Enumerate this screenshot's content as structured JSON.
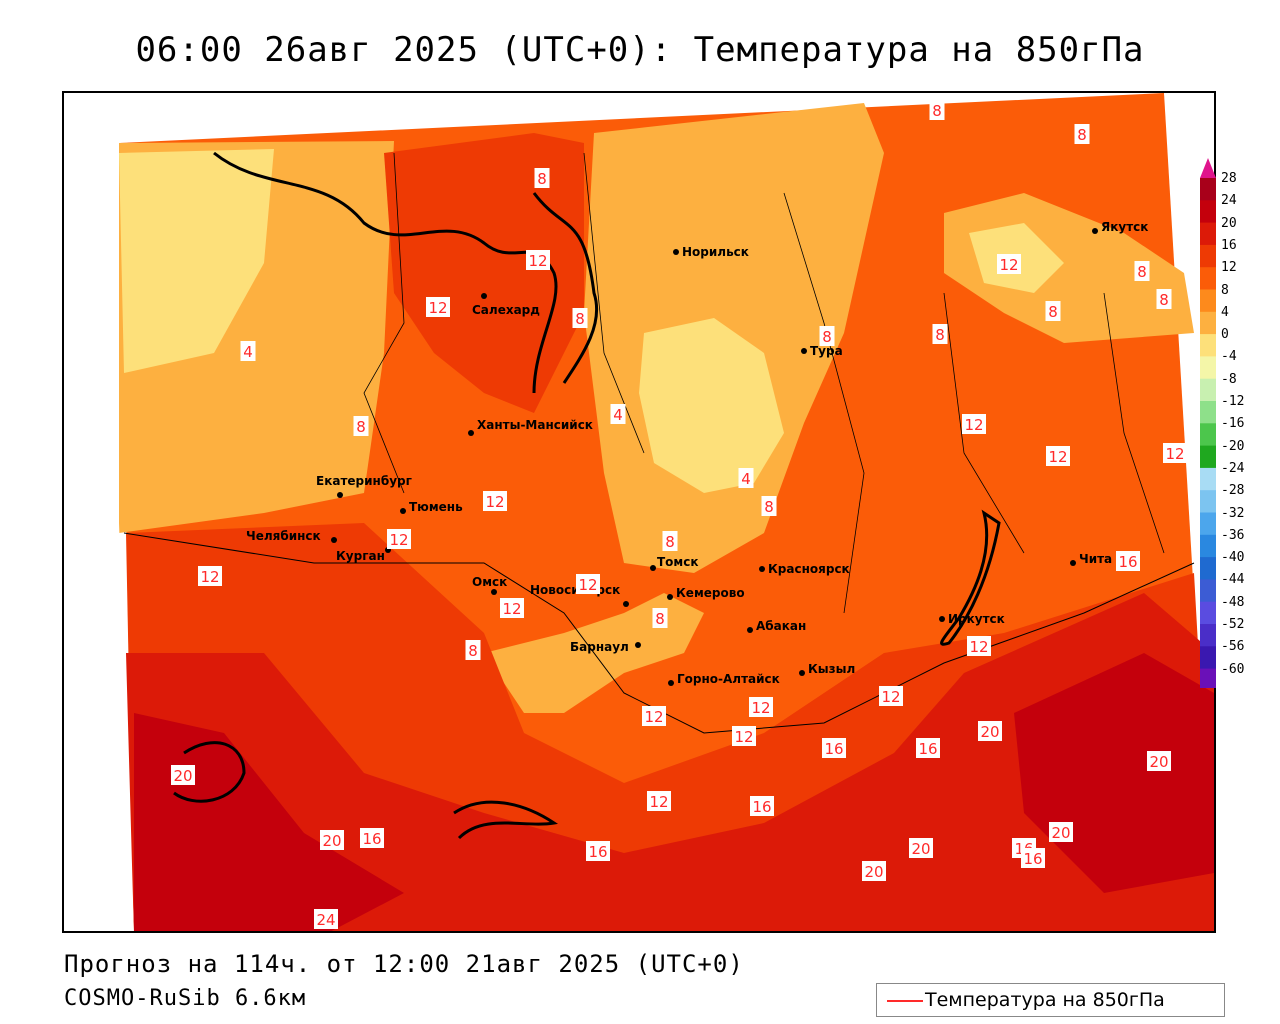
{
  "title": "06:00 26авг 2025 (UTC+0): Температура на 850гПа",
  "forecast": "Прогноз на 114ч. от 12:00 21авг 2025 (UTC+0)",
  "model": "COSMO-RuSib 6.6км",
  "legend": {
    "label": "Температура на 850гПа",
    "line_color": "#ff2a2a"
  },
  "colorbar": {
    "labels": [
      "28",
      "24",
      "20",
      "16",
      "12",
      "8",
      "4",
      "0",
      "-4",
      "-8",
      "-12",
      "-16",
      "-20",
      "-24",
      "-28",
      "-32",
      "-36",
      "-40",
      "-44",
      "-48",
      "-52",
      "-56",
      "-60"
    ],
    "colors": [
      "#a8001a",
      "#c4000c",
      "#dc1a08",
      "#ee3a04",
      "#fb5c08",
      "#fd8a1c",
      "#fdb040",
      "#fde07a",
      "#f4f6a8",
      "#c8f0b0",
      "#8ee08a",
      "#4cc64c",
      "#1fa81f",
      "#a8dcf4",
      "#7cc4f0",
      "#4ca6ec",
      "#2a88e0",
      "#1f6ad0",
      "#3c5cd4",
      "#5a4ce0",
      "#4a2ec8",
      "#3a18b0",
      "#6a10b8"
    ],
    "top_color": "#e0148c",
    "bottom_color": "#7a18c8"
  },
  "cities": [
    {
      "name": "Норильск",
      "key": "norilsk"
    },
    {
      "name": "Салехард",
      "key": "salekhard"
    },
    {
      "name": "Тура",
      "key": "tura"
    },
    {
      "name": "Якутск",
      "key": "yakutsk"
    },
    {
      "name": "Ханты-Мансийск",
      "key": "khanty"
    },
    {
      "name": "Екатеринбург",
      "key": "ekb"
    },
    {
      "name": "Тюмень",
      "key": "tyumen"
    },
    {
      "name": "Челябинск",
      "key": "chelyabinsk"
    },
    {
      "name": "Курган",
      "key": "kurgan"
    },
    {
      "name": "Омск",
      "key": "omsk"
    },
    {
      "name": "Новосибирск",
      "key": "novosibirsk"
    },
    {
      "name": "Томск",
      "key": "tomsk"
    },
    {
      "name": "Кемерово",
      "key": "kemerovo"
    },
    {
      "name": "Красноярск",
      "key": "krasnoyarsk"
    },
    {
      "name": "Барнаул",
      "key": "barnaul"
    },
    {
      "name": "Абакан",
      "key": "abakan"
    },
    {
      "name": "Горно-Алтайск",
      "key": "gorno"
    },
    {
      "name": "Кызыл",
      "key": "kyzyl"
    },
    {
      "name": "Иркутск",
      "key": "irkutsk"
    },
    {
      "name": "Чита",
      "key": "chita"
    }
  ],
  "isotherm_labels": [
    "4",
    "4",
    "4",
    "8",
    "8",
    "8",
    "8",
    "8",
    "8",
    "8",
    "8",
    "8",
    "8",
    "8",
    "8",
    "8",
    "8",
    "12",
    "12",
    "12",
    "12",
    "12",
    "12",
    "12",
    "12",
    "12",
    "12",
    "12",
    "12",
    "12",
    "12",
    "12",
    "12",
    "12",
    "16",
    "16",
    "16",
    "16",
    "16",
    "16",
    "16",
    "16",
    "20",
    "20",
    "20",
    "20",
    "20",
    "20",
    "20",
    "24"
  ]
}
